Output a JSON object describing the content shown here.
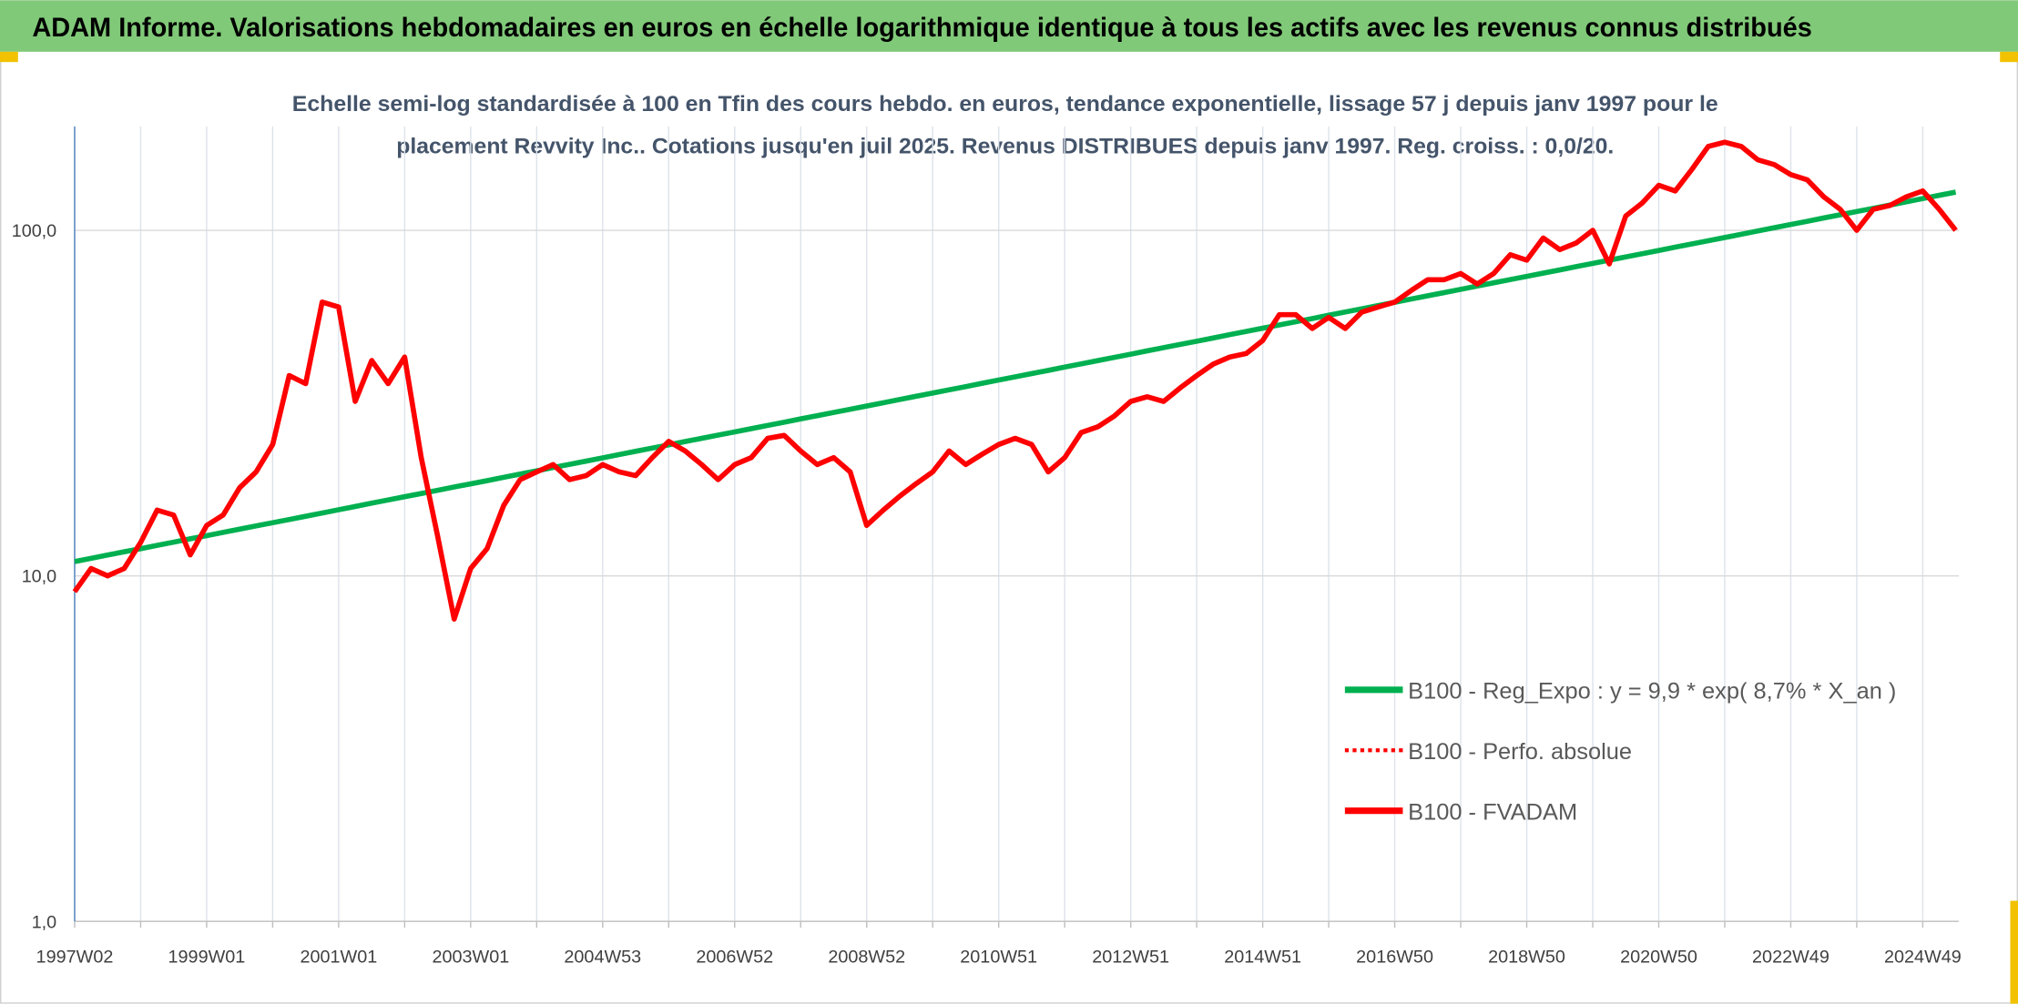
{
  "chart_data": {
    "type": "line",
    "title": "ADAM Informe. Valorisations hebdomadaires en euros en échelle logarithmique identique à tous les actifs avec les revenus connus distribués",
    "subtitle": [
      "Echelle semi-log standardisée à 100 en Tfin des cours hebdo. en euros, tendance exponentielle, lissage 57 j depuis janv 1997 pour le",
      "placement Revvity Inc.. Cotations jusqu'en juil 2025. Revenus DISTRIBUES depuis janv 1997. Reg. croiss. : 0,0/20."
    ],
    "log_scale": true,
    "grid": true,
    "legend": "right",
    "ylim": [
      1,
      200
    ],
    "yticks": [
      {
        "value": 1,
        "label": "1,0"
      },
      {
        "value": 10,
        "label": "10,0"
      },
      {
        "value": 100,
        "label": "100,0"
      }
    ],
    "categories": [
      "1997W02",
      null,
      null,
      null,
      null,
      null,
      null,
      null,
      "1999W01",
      null,
      null,
      null,
      null,
      null,
      null,
      null,
      "2001W01",
      null,
      null,
      null,
      null,
      null,
      null,
      null,
      "2003W01",
      null,
      null,
      null,
      null,
      null,
      null,
      null,
      "2004W53",
      null,
      null,
      null,
      null,
      null,
      null,
      null,
      "2006W52",
      null,
      null,
      null,
      null,
      null,
      null,
      null,
      "2008W52",
      null,
      null,
      null,
      null,
      null,
      null,
      null,
      "2010W51",
      null,
      null,
      null,
      null,
      null,
      null,
      null,
      "2012W51",
      null,
      null,
      null,
      null,
      null,
      null,
      null,
      "2014W51",
      null,
      null,
      null,
      null,
      null,
      null,
      null,
      "2016W50",
      null,
      null,
      null,
      null,
      null,
      null,
      null,
      "2018W50",
      null,
      null,
      null,
      null,
      null,
      null,
      null,
      "2020W50",
      null,
      null,
      null,
      null,
      null,
      null,
      null,
      "2022W49",
      null,
      null,
      null,
      null,
      null,
      null,
      null,
      "2024W49",
      null,
      null
    ],
    "series": [
      {
        "name": "B100 - Reg_Expo : y = 9,9 * exp( 8,7% *  X_an )",
        "color": "#00b050",
        "style": "solid",
        "values": [
          11.0,
          11.24,
          11.49,
          11.74,
          11.99,
          12.26,
          12.52,
          12.8,
          13.07,
          13.36,
          13.65,
          13.95,
          14.25,
          14.56,
          14.88,
          15.2,
          15.54,
          15.88,
          16.23,
          16.58,
          16.94,
          17.31,
          17.69,
          18.08,
          18.47,
          18.87,
          19.29,
          19.71,
          20.14,
          20.58,
          21.03,
          21.49,
          21.96,
          22.44,
          22.93,
          23.43,
          23.94,
          24.47,
          25.0,
          25.55,
          26.1,
          26.67,
          27.25,
          27.85,
          28.46,
          29.08,
          29.71,
          30.36,
          31.02,
          31.7,
          32.39,
          33.1,
          33.82,
          34.56,
          35.31,
          36.09,
          36.87,
          37.68,
          38.5,
          39.34,
          40.2,
          41.08,
          41.97,
          42.89,
          43.83,
          44.79,
          45.77,
          46.77,
          47.79,
          48.83,
          49.9,
          50.99,
          52.09,
          53.23,
          54.39,
          55.58,
          56.79,
          58.03,
          59.3,
          60.6,
          61.92,
          63.27,
          64.66,
          66.07,
          67.51,
          68.99,
          70.49,
          72.03,
          73.6,
          75.21,
          76.85,
          78.53,
          80.25,
          82.0,
          83.79,
          85.62,
          87.48,
          89.39,
          91.35,
          93.34,
          95.38,
          97.46,
          99.59,
          101.77,
          103.98,
          106.25,
          108.58,
          110.95,
          113.37,
          115.84,
          118.37,
          120.96,
          123.6,
          126.3,
          129.1
        ]
      },
      {
        "name": "B100 - Perfo. absolue",
        "color": "#ff0000",
        "style": "dotted",
        "values": [
          9.0,
          10.5,
          10.0,
          10.5,
          12.5,
          15.5,
          15.0,
          11.5,
          14.0,
          15.0,
          18.0,
          20.0,
          24.0,
          38.0,
          36.0,
          62.0,
          60.0,
          32.0,
          42.0,
          36.0,
          43.0,
          22.0,
          13.0,
          7.5,
          10.5,
          12.0,
          16.0,
          19.0,
          20.0,
          21.0,
          19.0,
          19.5,
          21.0,
          20.0,
          19.5,
          22.0,
          24.5,
          23.0,
          21.0,
          19.0,
          21.0,
          22.0,
          25.0,
          25.5,
          23.0,
          21.0,
          22.0,
          20.0,
          14.0,
          15.5,
          17.0,
          18.5,
          20.0,
          23.0,
          21.0,
          22.5,
          24.0,
          25.0,
          24.0,
          20.0,
          22.0,
          26.0,
          27.0,
          29.0,
          32.0,
          33.0,
          32.0,
          35.0,
          38.0,
          41.0,
          43.0,
          44.0,
          48.0,
          57.0,
          57.0,
          52.0,
          56.0,
          52.0,
          58.0,
          60.0,
          62.0,
          67.0,
          72.0,
          72.0,
          75.0,
          70.0,
          75.0,
          85.0,
          82.0,
          95.0,
          88.0,
          92.0,
          100.0,
          80.0,
          110.0,
          120.0,
          135.0,
          130.0,
          150.0,
          175.0,
          180.0,
          175.0,
          160.0,
          155.0,
          145.0,
          140.0,
          125.0,
          115.0,
          100.0,
          115.0,
          118.0,
          125.0,
          130.0,
          115.0,
          100.0
        ]
      },
      {
        "name": "B100 - FVADAM",
        "color": "#ff0000",
        "style": "solid",
        "values": [
          9.0,
          10.5,
          10.0,
          10.5,
          12.5,
          15.5,
          15.0,
          11.5,
          14.0,
          15.0,
          18.0,
          20.0,
          24.0,
          38.0,
          36.0,
          62.0,
          60.0,
          32.0,
          42.0,
          36.0,
          43.0,
          22.0,
          13.0,
          7.5,
          10.5,
          12.0,
          16.0,
          19.0,
          20.0,
          21.0,
          19.0,
          19.5,
          21.0,
          20.0,
          19.5,
          22.0,
          24.5,
          23.0,
          21.0,
          19.0,
          21.0,
          22.0,
          25.0,
          25.5,
          23.0,
          21.0,
          22.0,
          20.0,
          14.0,
          15.5,
          17.0,
          18.5,
          20.0,
          23.0,
          21.0,
          22.5,
          24.0,
          25.0,
          24.0,
          20.0,
          22.0,
          26.0,
          27.0,
          29.0,
          32.0,
          33.0,
          32.0,
          35.0,
          38.0,
          41.0,
          43.0,
          44.0,
          48.0,
          57.0,
          57.0,
          52.0,
          56.0,
          52.0,
          58.0,
          60.0,
          62.0,
          67.0,
          72.0,
          72.0,
          75.0,
          70.0,
          75.0,
          85.0,
          82.0,
          95.0,
          88.0,
          92.0,
          100.0,
          80.0,
          110.0,
          120.0,
          135.0,
          130.0,
          150.0,
          175.0,
          180.0,
          175.0,
          160.0,
          155.0,
          145.0,
          140.0,
          125.0,
          115.0,
          100.0,
          115.0,
          118.0,
          125.0,
          130.0,
          115.0,
          100.0
        ]
      }
    ]
  }
}
